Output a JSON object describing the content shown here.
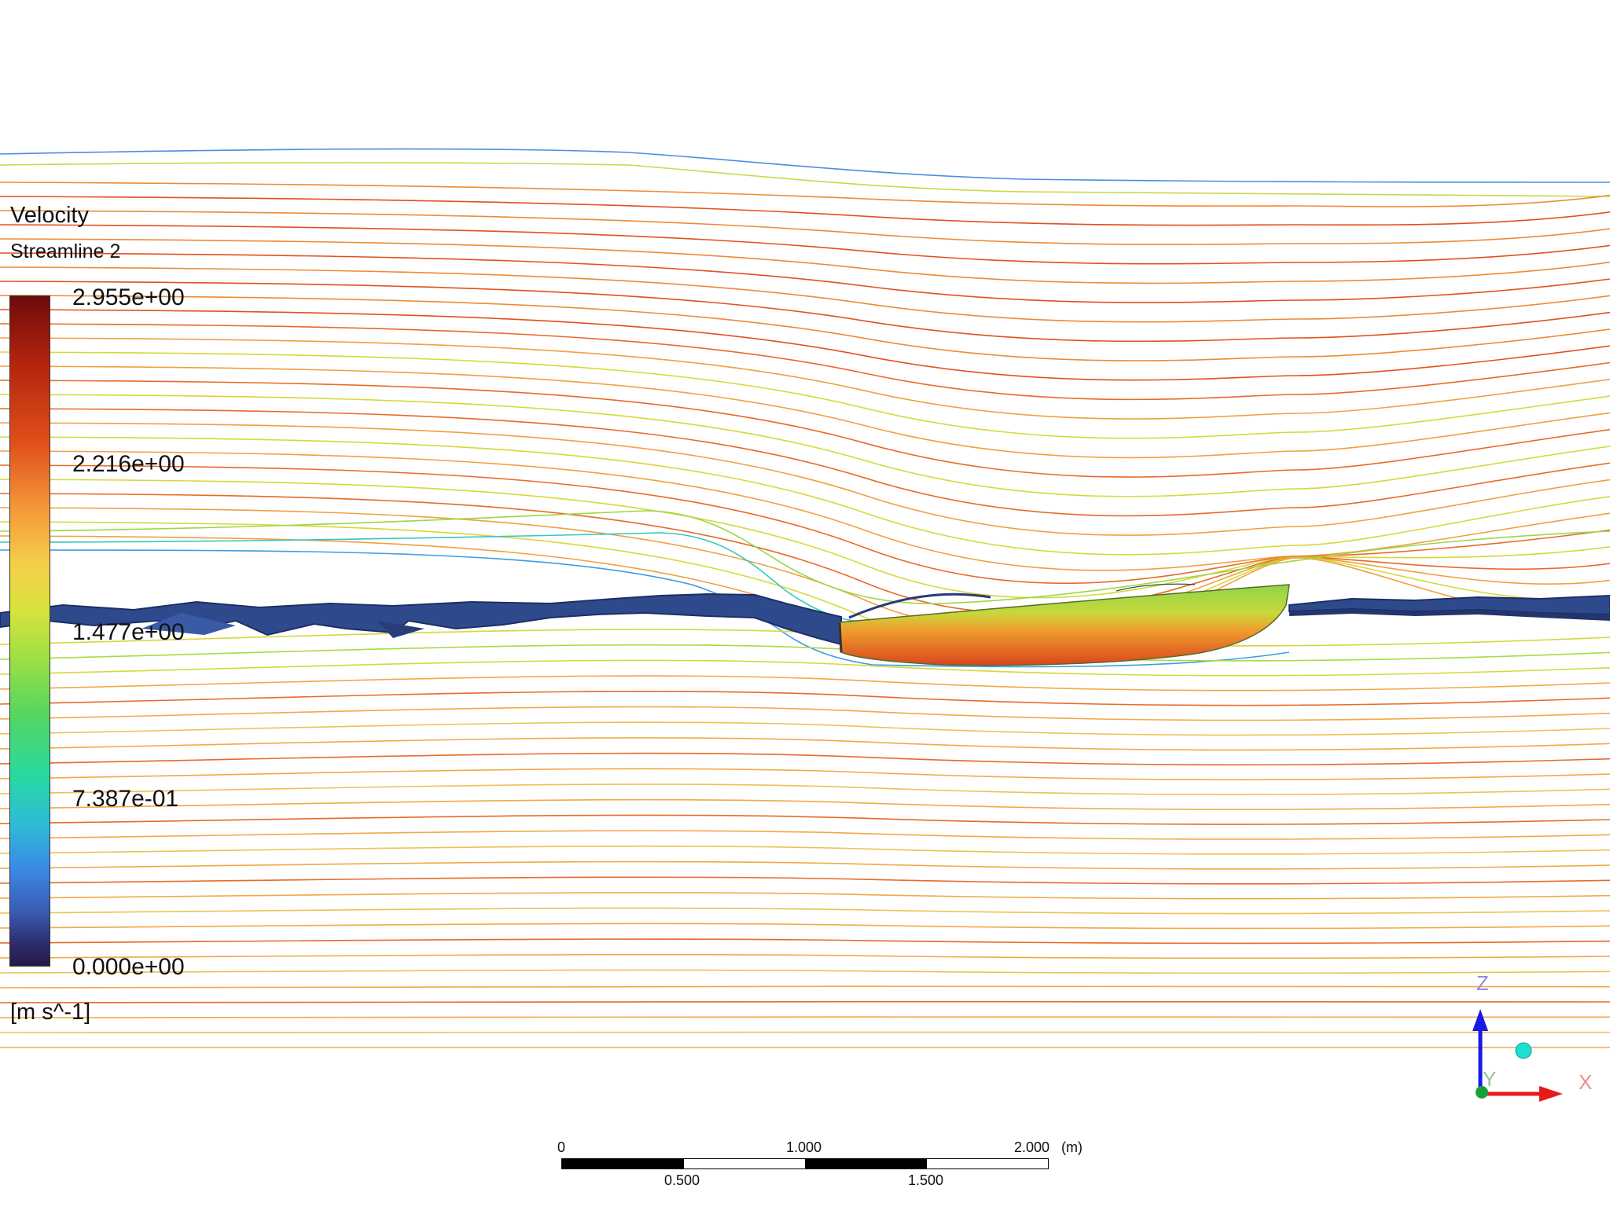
{
  "legend": {
    "title": "Velocity",
    "subtitle": "Streamline 2",
    "ticks": [
      "2.955e+00",
      "2.216e+00",
      "1.477e+00",
      "7.387e-01",
      "0.000e+00"
    ],
    "units": "[m s^-1]"
  },
  "triad": {
    "z_label": "Z",
    "y_label": "Y",
    "x_label": "X",
    "z_color": "#1a1ae6",
    "x_color": "#e61a1a",
    "y_color": "#1a9e3a"
  },
  "scale_bar": {
    "top_labels": [
      "0",
      "1.000",
      "2.000"
    ],
    "unit": "(m)",
    "bottom_labels": [
      "0.500",
      "1.500"
    ]
  },
  "colors": {
    "streamline_warm": "#f0a040",
    "streamline_hot": "#e2501e",
    "water_surface": "#2f4a8c",
    "hull": "#e9641e"
  }
}
